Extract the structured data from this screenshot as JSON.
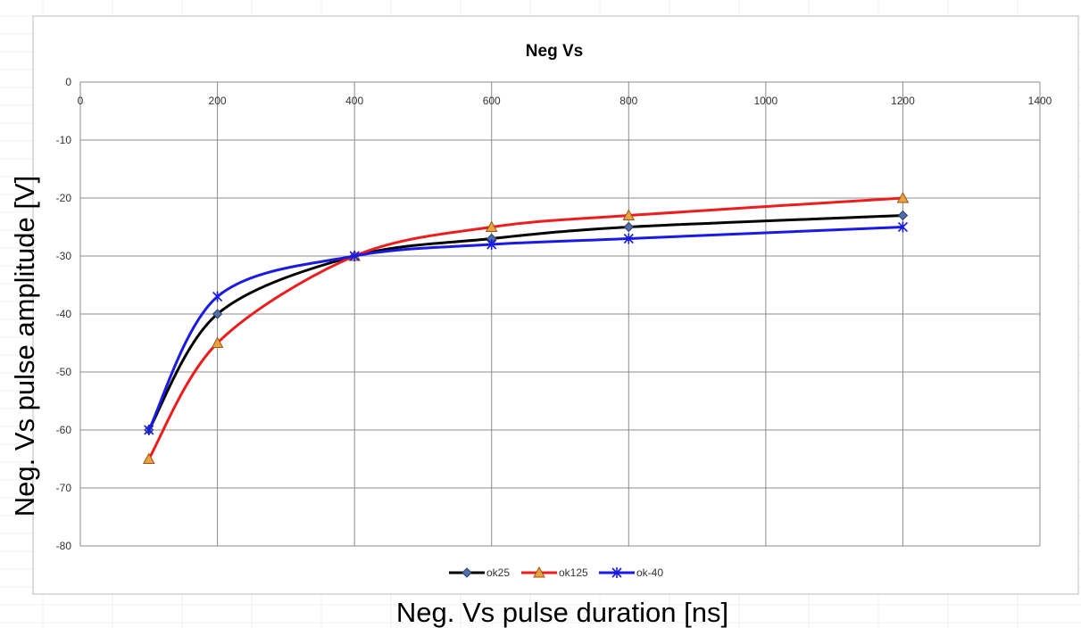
{
  "chart_data": {
    "type": "line",
    "title": "Neg Vs",
    "xlabel": "Neg. Vs pulse duration [ns]",
    "ylabel": "Neg. Vs pulse amplitude [V]",
    "xlim": [
      0,
      1400
    ],
    "ylim": [
      -80,
      0
    ],
    "x_ticks": [
      "0",
      "200",
      "400",
      "600",
      "800",
      "1000",
      "1200",
      "1400"
    ],
    "y_ticks": [
      "0",
      "-10",
      "-20",
      "-30",
      "-40",
      "-50",
      "-60",
      "-70",
      "-80"
    ],
    "grid": true,
    "legend_position": "bottom",
    "x": [
      100,
      200,
      400,
      600,
      800,
      1200
    ],
    "series": [
      {
        "name": "ok25",
        "color": "#000000",
        "marker": "diamond",
        "marker_color": "#4f6fa8",
        "values": [
          -60,
          -40,
          -30,
          -27,
          -25,
          -23
        ]
      },
      {
        "name": "ok125",
        "color": "#ee1c1c",
        "marker": "triangle",
        "marker_color": "#e7a33c",
        "values": [
          -65,
          -45,
          -30,
          -25,
          -23,
          -20
        ]
      },
      {
        "name": "ok-40",
        "color": "#1a1ae6",
        "marker": "star",
        "marker_color": "#3b5bd6",
        "values": [
          -60,
          -37,
          -30,
          -28,
          -27,
          -25
        ]
      }
    ]
  }
}
